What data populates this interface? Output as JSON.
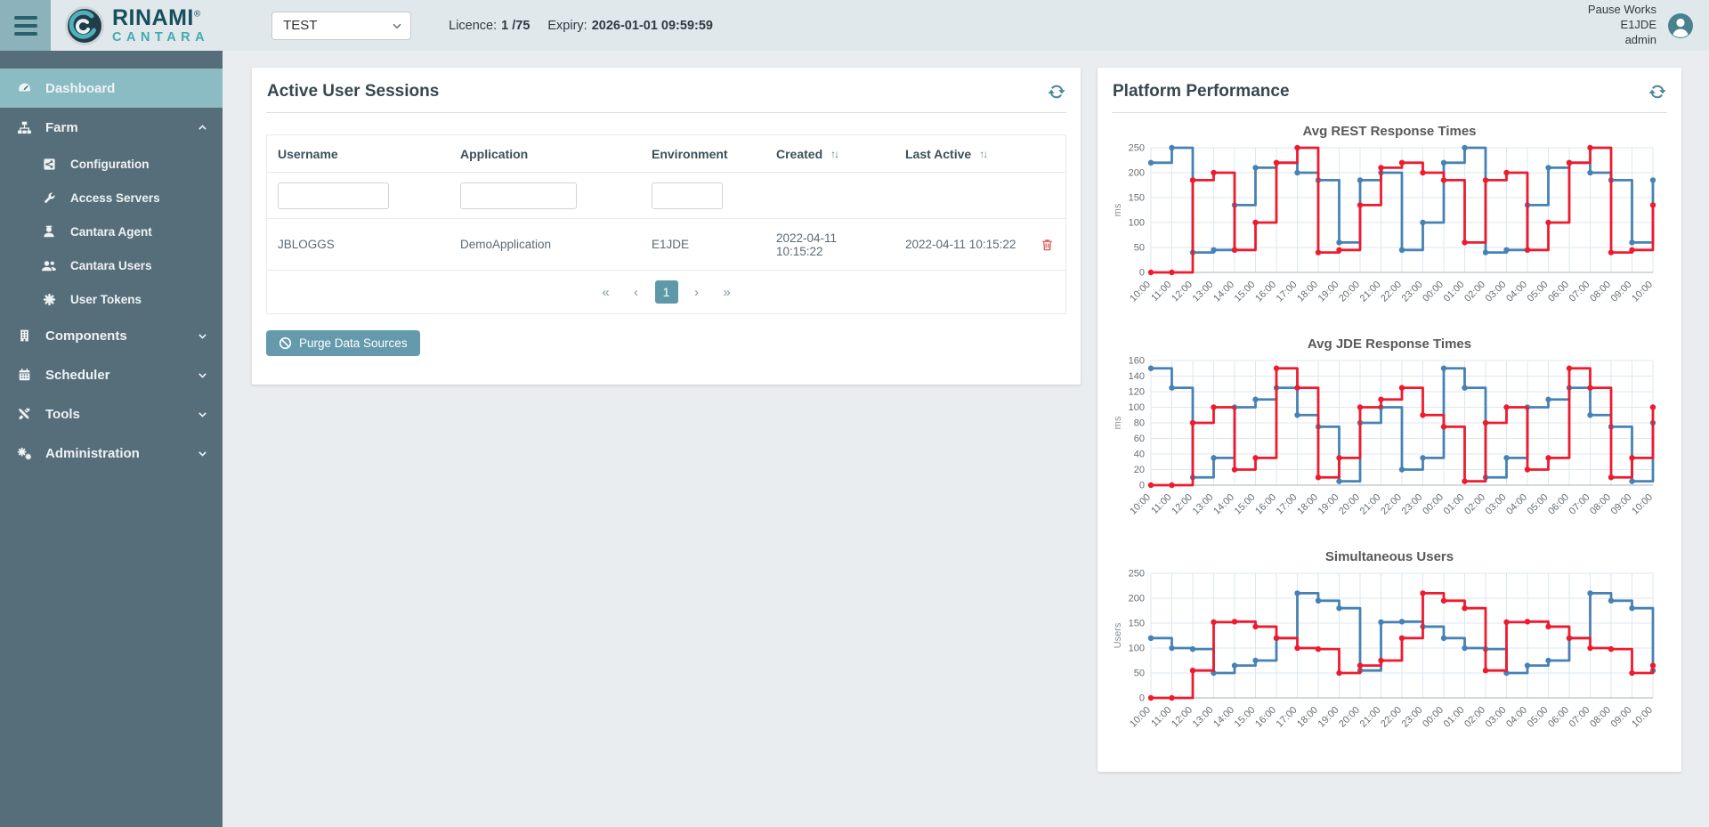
{
  "topbar": {
    "brand": {
      "line1": "RINAMI",
      "reg": "®",
      "line2": "CANTARA"
    },
    "env_select": {
      "value": "TEST"
    },
    "licence": {
      "label": "Licence:",
      "value": "1 /75"
    },
    "expiry": {
      "label": "Expiry:",
      "value": "2026-01-01 09:59:59"
    },
    "user": {
      "name": "Pause Works",
      "environment": "E1JDE",
      "role": "admin"
    }
  },
  "sidebar": {
    "items": [
      {
        "label": "Dashboard",
        "icon": "dashboard",
        "level": 0,
        "active": true
      },
      {
        "label": "Farm",
        "icon": "sitemap",
        "level": 0,
        "chevron": "up"
      },
      {
        "label": "Configuration",
        "icon": "share-square",
        "level": 1
      },
      {
        "label": "Access Servers",
        "icon": "wrench",
        "level": 1
      },
      {
        "label": "Cantara Agent",
        "icon": "agent",
        "level": 1
      },
      {
        "label": "Cantara Users",
        "icon": "users",
        "level": 1
      },
      {
        "label": "User Tokens",
        "icon": "token",
        "level": 1
      },
      {
        "label": "Components",
        "icon": "building",
        "level": 0,
        "chevron": "down"
      },
      {
        "label": "Scheduler",
        "icon": "calendar",
        "level": 0,
        "chevron": "down"
      },
      {
        "label": "Tools",
        "icon": "tools",
        "level": 0,
        "chevron": "down"
      },
      {
        "label": "Administration",
        "icon": "cogs",
        "level": 0,
        "chevron": "down"
      }
    ]
  },
  "sessions": {
    "title": "Active User Sessions",
    "sort_glyph": "↑↓",
    "columns": [
      {
        "label": "Username",
        "sortable": false
      },
      {
        "label": "Application",
        "sortable": false
      },
      {
        "label": "Environment",
        "sortable": false
      },
      {
        "label": "Created",
        "sortable": true
      },
      {
        "label": "Last Active",
        "sortable": true
      }
    ],
    "filters": [
      {
        "column": "username",
        "value": ""
      },
      {
        "column": "application",
        "value": ""
      },
      {
        "column": "environment",
        "value": ""
      }
    ],
    "rows": [
      [
        "JBLOGGS",
        "DemoApplication",
        "E1JDE",
        "2022-04-11 10:15:22",
        "2022-04-11 10:15:22"
      ]
    ],
    "pagination": {
      "first": "«",
      "prev": "‹",
      "page": "1",
      "next": "›",
      "last": "»"
    },
    "purge_button": "Purge Data Sources"
  },
  "performance": {
    "title": "Platform Performance"
  },
  "chart_data": [
    {
      "type": "line",
      "step": true,
      "title": "Avg REST Response Times",
      "xlabel": "",
      "ylabel": "ms",
      "ylim": [
        0,
        250
      ],
      "ystep": 50,
      "grid": true,
      "legend": "none",
      "categories": [
        "10:00",
        "11:00",
        "12:00",
        "13:00",
        "14:00",
        "15:00",
        "16:00",
        "17:00",
        "18:00",
        "19:00",
        "20:00",
        "21:00",
        "22:00",
        "23:00",
        "00:00",
        "01:00",
        "02:00",
        "03:00",
        "04:00",
        "05:00",
        "06:00",
        "07:00",
        "08:00",
        "09:00",
        "10:00"
      ],
      "series": [
        {
          "name": "blue-series",
          "color": "#4682b4",
          "values": [
            220,
            250,
            40,
            45,
            135,
            210,
            220,
            200,
            185,
            60,
            185,
            200,
            45,
            100,
            220,
            250,
            40,
            45,
            135,
            210,
            220,
            200,
            185,
            60,
            185
          ]
        },
        {
          "name": "red-series",
          "color": "#ed1b2d",
          "values": [
            0,
            0,
            185,
            200,
            45,
            100,
            220,
            250,
            40,
            45,
            135,
            210,
            220,
            200,
            185,
            60,
            185,
            200,
            45,
            100,
            220,
            250,
            40,
            45,
            135
          ]
        }
      ]
    },
    {
      "type": "line",
      "step": true,
      "title": "Avg JDE Response Times",
      "xlabel": "",
      "ylabel": "ms",
      "ylim": [
        0,
        160
      ],
      "ystep": 20,
      "grid": true,
      "legend": "none",
      "categories": [
        "10:00",
        "11:00",
        "12:00",
        "13:00",
        "14:00",
        "15:00",
        "16:00",
        "17:00",
        "18:00",
        "19:00",
        "20:00",
        "21:00",
        "22:00",
        "23:00",
        "00:00",
        "01:00",
        "02:00",
        "03:00",
        "04:00",
        "05:00",
        "06:00",
        "07:00",
        "08:00",
        "09:00",
        "10:00"
      ],
      "series": [
        {
          "name": "blue-series",
          "color": "#4682b4",
          "values": [
            150,
            125,
            10,
            35,
            100,
            110,
            125,
            90,
            75,
            5,
            80,
            100,
            20,
            35,
            150,
            125,
            10,
            35,
            100,
            110,
            125,
            90,
            75,
            5,
            80
          ]
        },
        {
          "name": "red-series",
          "color": "#ed1b2d",
          "values": [
            0,
            0,
            80,
            100,
            20,
            35,
            150,
            125,
            10,
            35,
            100,
            110,
            125,
            90,
            75,
            5,
            80,
            100,
            20,
            35,
            150,
            125,
            10,
            35,
            100
          ]
        }
      ]
    },
    {
      "type": "line",
      "step": true,
      "title": "Simultaneous Users",
      "xlabel": "",
      "ylabel": "Users",
      "ylim": [
        0,
        250
      ],
      "ystep": 50,
      "grid": true,
      "legend": "none",
      "categories": [
        "10:00",
        "11:00",
        "12:00",
        "13:00",
        "14:00",
        "15:00",
        "16:00",
        "17:00",
        "18:00",
        "19:00",
        "20:00",
        "21:00",
        "22:00",
        "23:00",
        "00:00",
        "01:00",
        "02:00",
        "03:00",
        "04:00",
        "05:00",
        "06:00",
        "07:00",
        "08:00",
        "09:00",
        "10:00"
      ],
      "series": [
        {
          "name": "blue-series",
          "color": "#4682b4",
          "values": [
            120,
            100,
            98,
            50,
            65,
            75,
            120,
            210,
            195,
            180,
            55,
            152,
            153,
            143,
            120,
            100,
            98,
            50,
            65,
            75,
            120,
            210,
            195,
            180,
            55
          ]
        },
        {
          "name": "red-series",
          "color": "#ed1b2d",
          "values": [
            0,
            0,
            55,
            152,
            153,
            143,
            120,
            100,
            98,
            50,
            65,
            75,
            120,
            210,
            195,
            180,
            55,
            152,
            153,
            143,
            120,
            100,
            98,
            50,
            65
          ]
        }
      ]
    }
  ],
  "colors": {
    "topbar_bg": "#e0e8eb",
    "sidebar_bg": "#566e7a",
    "sidebar_active": "#8bbcc4",
    "accent_teal": "#5f98a8",
    "refresh_teal": "#4d8a99",
    "danger_red": "#e25757",
    "series_blue": "#4682b4",
    "series_red": "#ed1b2d",
    "grid": "#dde7f2"
  }
}
